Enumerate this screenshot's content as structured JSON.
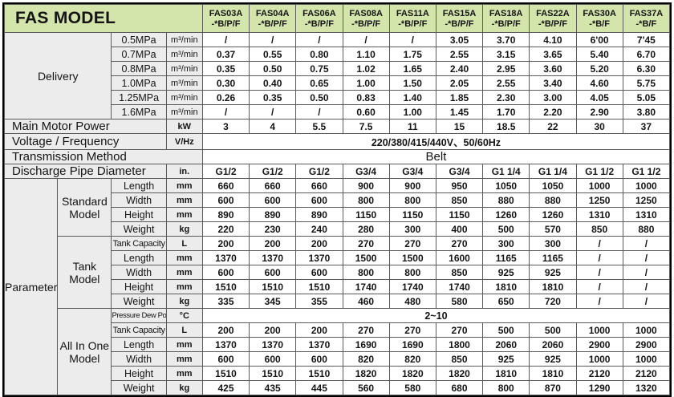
{
  "title": "FAS MODEL",
  "columns": [
    {
      "model": "FAS03A",
      "variant": "-*B/P/F"
    },
    {
      "model": "FAS04A",
      "variant": "-*B/P/F"
    },
    {
      "model": "FAS06A",
      "variant": "-*B/P/F"
    },
    {
      "model": "FAS08A",
      "variant": "-*B/P/F"
    },
    {
      "model": "FAS11A",
      "variant": "-*B/P/F"
    },
    {
      "model": "FAS15A",
      "variant": "-*B/P/F"
    },
    {
      "model": "FAS18A",
      "variant": "-*B/P/F"
    },
    {
      "model": "FAS22A",
      "variant": "-*B/P/F"
    },
    {
      "model": "FAS30A",
      "variant": "-*B/F"
    },
    {
      "model": "FAS37A",
      "variant": "-*B/F"
    }
  ],
  "delivery": {
    "label": "Delivery",
    "rows": [
      {
        "pressure": "0.5MPa",
        "unit": "m³/min",
        "values": [
          "/",
          "/",
          "/",
          "/",
          "/",
          "3.05",
          "3.70",
          "4.10",
          "6'00",
          "7'45"
        ]
      },
      {
        "pressure": "0.7MPa",
        "unit": "m³/min",
        "values": [
          "0.37",
          "0.55",
          "0.80",
          "1.10",
          "1.75",
          "2.55",
          "3.15",
          "3.65",
          "5.40",
          "6.70"
        ]
      },
      {
        "pressure": "0.8MPa",
        "unit": "m³/min",
        "values": [
          "0.35",
          "0.50",
          "0.75",
          "1.02",
          "1.65",
          "2.40",
          "2.95",
          "3.60",
          "5.20",
          "6.30"
        ]
      },
      {
        "pressure": "1.0MPa",
        "unit": "m³/min",
        "values": [
          "0.30",
          "0.40",
          "0.65",
          "1.00",
          "1.50",
          "2.05",
          "2.55",
          "3.40",
          "4.60",
          "5.75"
        ]
      },
      {
        "pressure": "1.25MPa",
        "unit": "m³/min",
        "values": [
          "0.26",
          "0.35",
          "0.50",
          "0.83",
          "1.40",
          "1.85",
          "2.30",
          "3.00",
          "4.05",
          "5.05"
        ]
      },
      {
        "pressure": "1.6MPa",
        "unit": "m³/min",
        "values": [
          "/",
          "/",
          "/",
          "0.60",
          "1.00",
          "1.45",
          "1.70",
          "2.20",
          "2.90",
          "3.80"
        ]
      }
    ]
  },
  "spec_rows": [
    {
      "label": "Main Motor Power",
      "unit": "kW",
      "values": [
        "3",
        "4",
        "5.5",
        "7.5",
        "11",
        "15",
        "18.5",
        "22",
        "30",
        "37"
      ]
    },
    {
      "label": "Voltage / Frequency",
      "unit": "V/Hz",
      "merged_value": "220/380/415/440V、50/60Hz"
    },
    {
      "label": "Transmission Method",
      "merged_value": "Belt"
    },
    {
      "label": "Discharge Pipe Diameter",
      "unit": "in.",
      "values": [
        "G1/2",
        "G1/2",
        "G1/2",
        "G3/4",
        "G3/4",
        "G3/4",
        "G1 1/4",
        "G1 1/4",
        "G1 1/2",
        "G1 1/2"
      ]
    }
  ],
  "parameter": {
    "label": "Parameter",
    "groups": [
      {
        "label": "Standard Model",
        "rows": [
          {
            "property": "Length",
            "unit": "mm",
            "values": [
              "660",
              "660",
              "660",
              "900",
              "900",
              "950",
              "1050",
              "1050",
              "1000",
              "1000"
            ]
          },
          {
            "property": "Width",
            "unit": "mm",
            "values": [
              "600",
              "600",
              "600",
              "800",
              "800",
              "850",
              "880",
              "880",
              "1250",
              "1250"
            ]
          },
          {
            "property": "Height",
            "unit": "mm",
            "values": [
              "890",
              "890",
              "890",
              "1150",
              "1150",
              "1150",
              "1260",
              "1260",
              "1310",
              "1310"
            ]
          },
          {
            "property": "Weight",
            "unit": "kg",
            "values": [
              "220",
              "230",
              "240",
              "280",
              "300",
              "400",
              "500",
              "570",
              "850",
              "880"
            ]
          }
        ]
      },
      {
        "label": "Tank Model",
        "rows": [
          {
            "property": "Tank Capacity",
            "unit": "L",
            "values": [
              "200",
              "200",
              "200",
              "270",
              "270",
              "270",
              "300",
              "300",
              "/",
              "/"
            ]
          },
          {
            "property": "Length",
            "unit": "mm",
            "values": [
              "1370",
              "1370",
              "1370",
              "1500",
              "1500",
              "1600",
              "1165",
              "1165",
              "/",
              "/"
            ]
          },
          {
            "property": "Width",
            "unit": "mm",
            "values": [
              "600",
              "600",
              "600",
              "800",
              "800",
              "850",
              "925",
              "925",
              "/",
              "/"
            ]
          },
          {
            "property": "Height",
            "unit": "mm",
            "values": [
              "1510",
              "1510",
              "1510",
              "1740",
              "1740",
              "1740",
              "1810",
              "1810",
              "/",
              "/"
            ]
          },
          {
            "property": "Weight",
            "unit": "kg",
            "values": [
              "335",
              "345",
              "355",
              "460",
              "480",
              "580",
              "650",
              "720",
              "/",
              "/"
            ]
          }
        ]
      },
      {
        "label": "All In One Model",
        "rows": [
          {
            "property": "Pressure Dew Point",
            "unit": "°C",
            "merged_value": "2~10"
          },
          {
            "property": "Tank Capacity",
            "unit": "L",
            "values": [
              "200",
              "200",
              "200",
              "270",
              "270",
              "270",
              "500",
              "500",
              "1000",
              "1000"
            ]
          },
          {
            "property": "Length",
            "unit": "mm",
            "values": [
              "1370",
              "1370",
              "1370",
              "1690",
              "1690",
              "1800",
              "2060",
              "2060",
              "2900",
              "2900"
            ]
          },
          {
            "property": "Width",
            "unit": "mm",
            "values": [
              "600",
              "600",
              "600",
              "820",
              "820",
              "850",
              "925",
              "925",
              "1000",
              "1000"
            ]
          },
          {
            "property": "Height",
            "unit": "mm",
            "values": [
              "1510",
              "1510",
              "1510",
              "1820",
              "1820",
              "1820",
              "1810",
              "1810",
              "2120",
              "2120"
            ]
          },
          {
            "property": "Weight",
            "unit": "kg",
            "values": [
              "425",
              "435",
              "445",
              "560",
              "580",
              "680",
              "800",
              "870",
              "1290",
              "1320"
            ]
          }
        ]
      }
    ]
  },
  "colors": {
    "header_green": "#d3e5ab",
    "label_gray": "#ececec",
    "grid_line": "#5a5a5a",
    "outer_border": "#000000",
    "text": "#141414"
  }
}
